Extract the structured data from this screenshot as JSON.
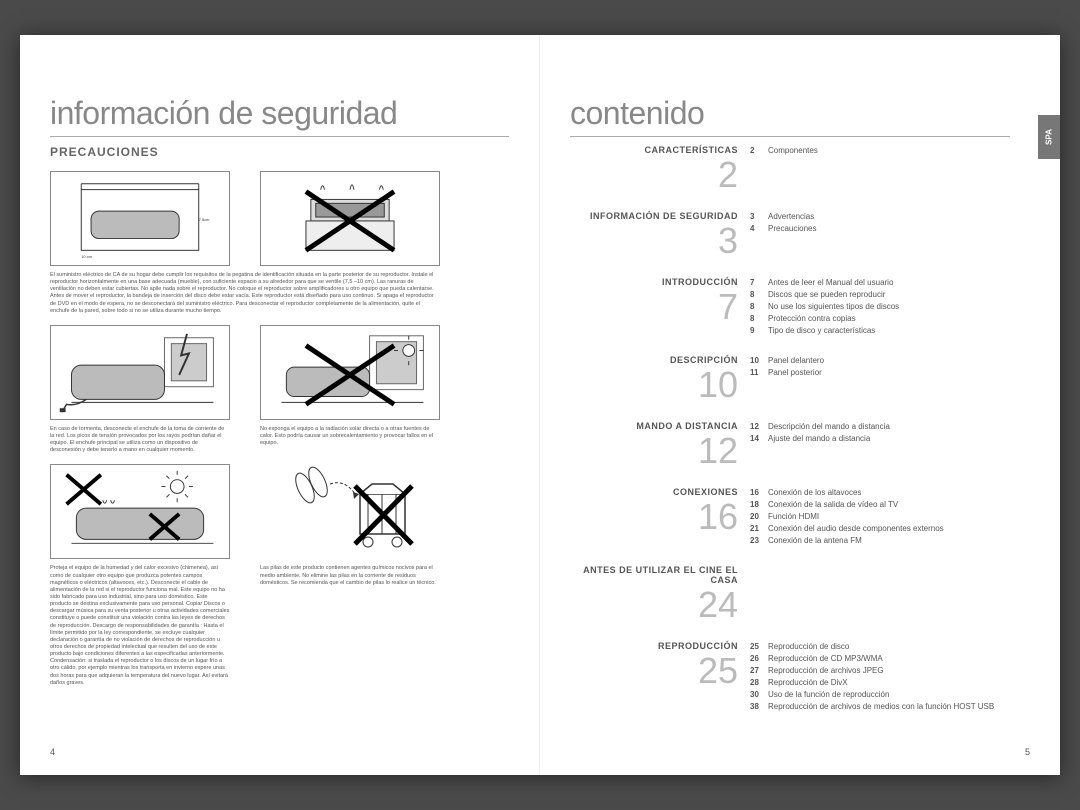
{
  "leftPage": {
    "title": "información de seguridad",
    "subtitle": "PRECAUCIONES",
    "caption1": "El suministro eléctrico de CA de su hogar debe cumplir los requisitos de la pegatina de identificación situada en la parte posterior de su reproductor. Instale el reproductor horizontalmente en una base adecuada (mueble), con suficiente espacio a su alrededor para que se ventile (7,5 –10 cm). Las ranuras de ventilación no deben estar cubiertas. No apile nada sobre el reproductor. No coloque el reproductor sobre amplificadores u otro equipo que pueda calentarse. Antes de mover el reproductor, la bandeja de inserción del disco debe estar vacía. Este reproductor está diseñado para uso continuo. Si apaga el reproductor de DVD en el modo de espera, no se desconectará del suministro eléctrico. Para desconectar el reproductor completamente de la alimentación, quite el enchufe de la pared, sobre todo si no se utiliza durante mucho tiempo.",
    "caption2a": "En caso de tormenta, desconecte el enchufe de la toma de corriente de la red. Los picos de tensión provocados por los rayos podrían dañar el equipo.\nEl enchufe principal se utiliza como un dispositivo de desconexión y debe tenerlo a mano en cualquier momento.",
    "caption2b": "No exponga el equipo a la radiación solar directa o a otras fuentes de calor.\nEsto podría causar un sobrecalentamiento y provocar fallos en el equipo.",
    "caption3a": "Proteja el equipo de la humedad y del calor excesivo (chimenea), así como de cualquier otro equipo que produzca potentes campos magnéticos o eléctricos (altavoces, etc.). Desconecte el cable de alimentación de la red si el reproductor funciona mal. Este equipo no ha sido fabricado para uso industrial, sino para uso doméstico. Este producto se destina exclusivamente para uso personal. Copiar Discos o descargar música para su venta posterior u otras actividades comerciales constituye o puede constituir una violación contra las leyes de derechos de reproducción. Descargo de responsabilidades de garantía : Hasta el límite permitido por la ley correspondiente, se excluye cualquier declaración o garantía de no violación de derechos de reproducción u otros derechos de propiedad intelectual que resulten del uso de este producto bajo condiciones diferentes a las especificadas anteriormente. Condensación: si traslada el reproductor o los discos de un lugar frío a otro cálido, por ejemplo mientras los transporta en invierno espere unas dos horas para que adquieran la temperatura del nuevo lugar. Así evitará daños graves.",
    "caption3b": "Las pilas de este producto contienen agentes químicos nocivos para el medio ambiente.\nNo elimine las pilas en la corriente de residuos domésticos. Se recomienda que el cambio de pilas lo realice un técnico.",
    "pageNum": "4"
  },
  "rightPage": {
    "title": "contenido",
    "langTab": "SPA",
    "pageNum": "5",
    "sections": [
      {
        "heading": "CARACTERÍSTICAS",
        "bignum": "2",
        "items": [
          {
            "pg": "2",
            "label": "Componentes"
          }
        ]
      },
      {
        "heading": "INFORMACIÓN DE SEGURIDAD",
        "bignum": "3",
        "items": [
          {
            "pg": "3",
            "label": "Advertencias"
          },
          {
            "pg": "4",
            "label": "Precauciones"
          }
        ]
      },
      {
        "heading": "INTRODUCCIÓN",
        "bignum": "7",
        "items": [
          {
            "pg": "7",
            "label": "Antes de leer el Manual del usuario"
          },
          {
            "pg": "8",
            "label": "Discos que se pueden reproducir"
          },
          {
            "pg": "8",
            "label": "No use los siguientes tipos de discos"
          },
          {
            "pg": "8",
            "label": "Protección contra copias"
          },
          {
            "pg": "9",
            "label": "Tipo de disco y características"
          }
        ]
      },
      {
        "heading": "DESCRIPCIÓN",
        "bignum": "10",
        "items": [
          {
            "pg": "10",
            "label": "Panel delantero"
          },
          {
            "pg": "11",
            "label": "Panel posterior"
          }
        ]
      },
      {
        "heading": "MANDO A DISTANCIA",
        "bignum": "12",
        "items": [
          {
            "pg": "12",
            "label": "Descripción del mando a distancia"
          },
          {
            "pg": "14",
            "label": "Ajuste del mando a distancia"
          }
        ]
      },
      {
        "heading": "CONEXIONES",
        "bignum": "16",
        "items": [
          {
            "pg": "16",
            "label": "Conexión de los altavoces"
          },
          {
            "pg": "18",
            "label": "Conexión de la salida de vídeo al TV"
          },
          {
            "pg": "20",
            "label": "Función HDMI"
          },
          {
            "pg": "21",
            "label": "Conexión del audio desde componentes externos"
          },
          {
            "pg": "23",
            "label": "Conexión de la antena FM"
          }
        ]
      },
      {
        "heading": "ANTES DE UTILIZAR EL CINE EL CASA",
        "bignum": "24",
        "items": []
      },
      {
        "heading": "REPRODUCCIÓN",
        "bignum": "25",
        "items": [
          {
            "pg": "25",
            "label": "Reproducción de disco"
          },
          {
            "pg": "26",
            "label": "Reproducción de CD MP3/WMA"
          },
          {
            "pg": "27",
            "label": "Reproducción de archivos JPEG"
          },
          {
            "pg": "28",
            "label": "Reproducción de DivX"
          },
          {
            "pg": "30",
            "label": "Uso de la función de reproducción"
          },
          {
            "pg": "38",
            "label": "Reproducción de archivos de medios con la función HOST USB"
          }
        ]
      }
    ]
  },
  "colors": {
    "bg": "#4a4a4a",
    "titleColor": "#888",
    "textColor": "#555",
    "bignumColor": "#bbb"
  }
}
